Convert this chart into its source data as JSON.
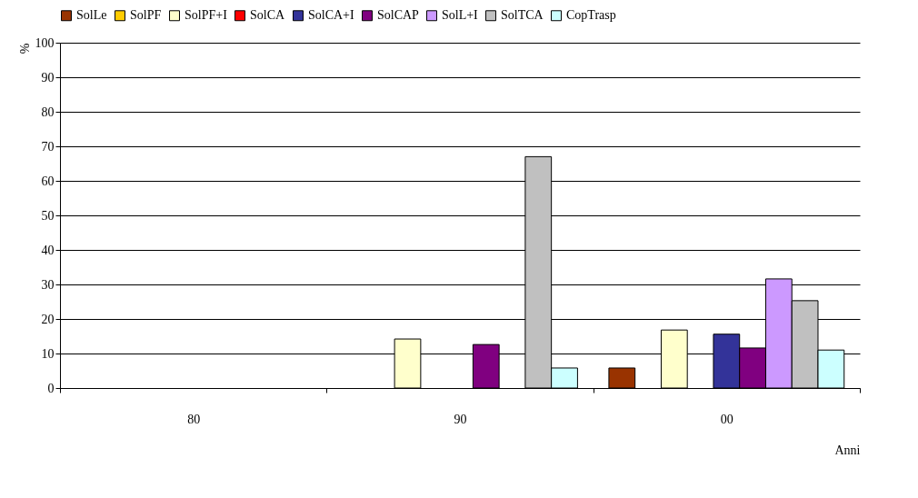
{
  "chart_data": {
    "type": "bar",
    "xlabel": "Anni",
    "ylabel": "%",
    "categories": [
      "80",
      "90",
      "00"
    ],
    "ylim": [
      0,
      100
    ],
    "yticks": [
      0,
      10,
      20,
      30,
      40,
      50,
      60,
      70,
      80,
      90,
      100
    ],
    "grid": "y",
    "legend": "top",
    "series": [
      {
        "name": "SolLe",
        "color": "#993300",
        "values": [
          null,
          null,
          5.8
        ]
      },
      {
        "name": "SolPF",
        "color": "#ffcc00",
        "values": [
          null,
          null,
          null
        ]
      },
      {
        "name": "SolPF+I",
        "color": "#ffffcc",
        "values": [
          null,
          14.2,
          16.8
        ]
      },
      {
        "name": "SolCA",
        "color": "#ff0000",
        "values": [
          null,
          null,
          null
        ]
      },
      {
        "name": "SolCA+I",
        "color": "#333399",
        "values": [
          null,
          null,
          15.6
        ]
      },
      {
        "name": "SolCAP",
        "color": "#800080",
        "values": [
          null,
          12.6,
          11.6
        ]
      },
      {
        "name": "SolL+I",
        "color": "#cc99ff",
        "values": [
          null,
          null,
          31.6
        ]
      },
      {
        "name": "SolTCA",
        "color": "#c0c0c0",
        "values": [
          null,
          67,
          25.3
        ]
      },
      {
        "name": "CopTrasp",
        "color": "#ccffff",
        "values": [
          null,
          5.8,
          11
        ]
      }
    ]
  }
}
